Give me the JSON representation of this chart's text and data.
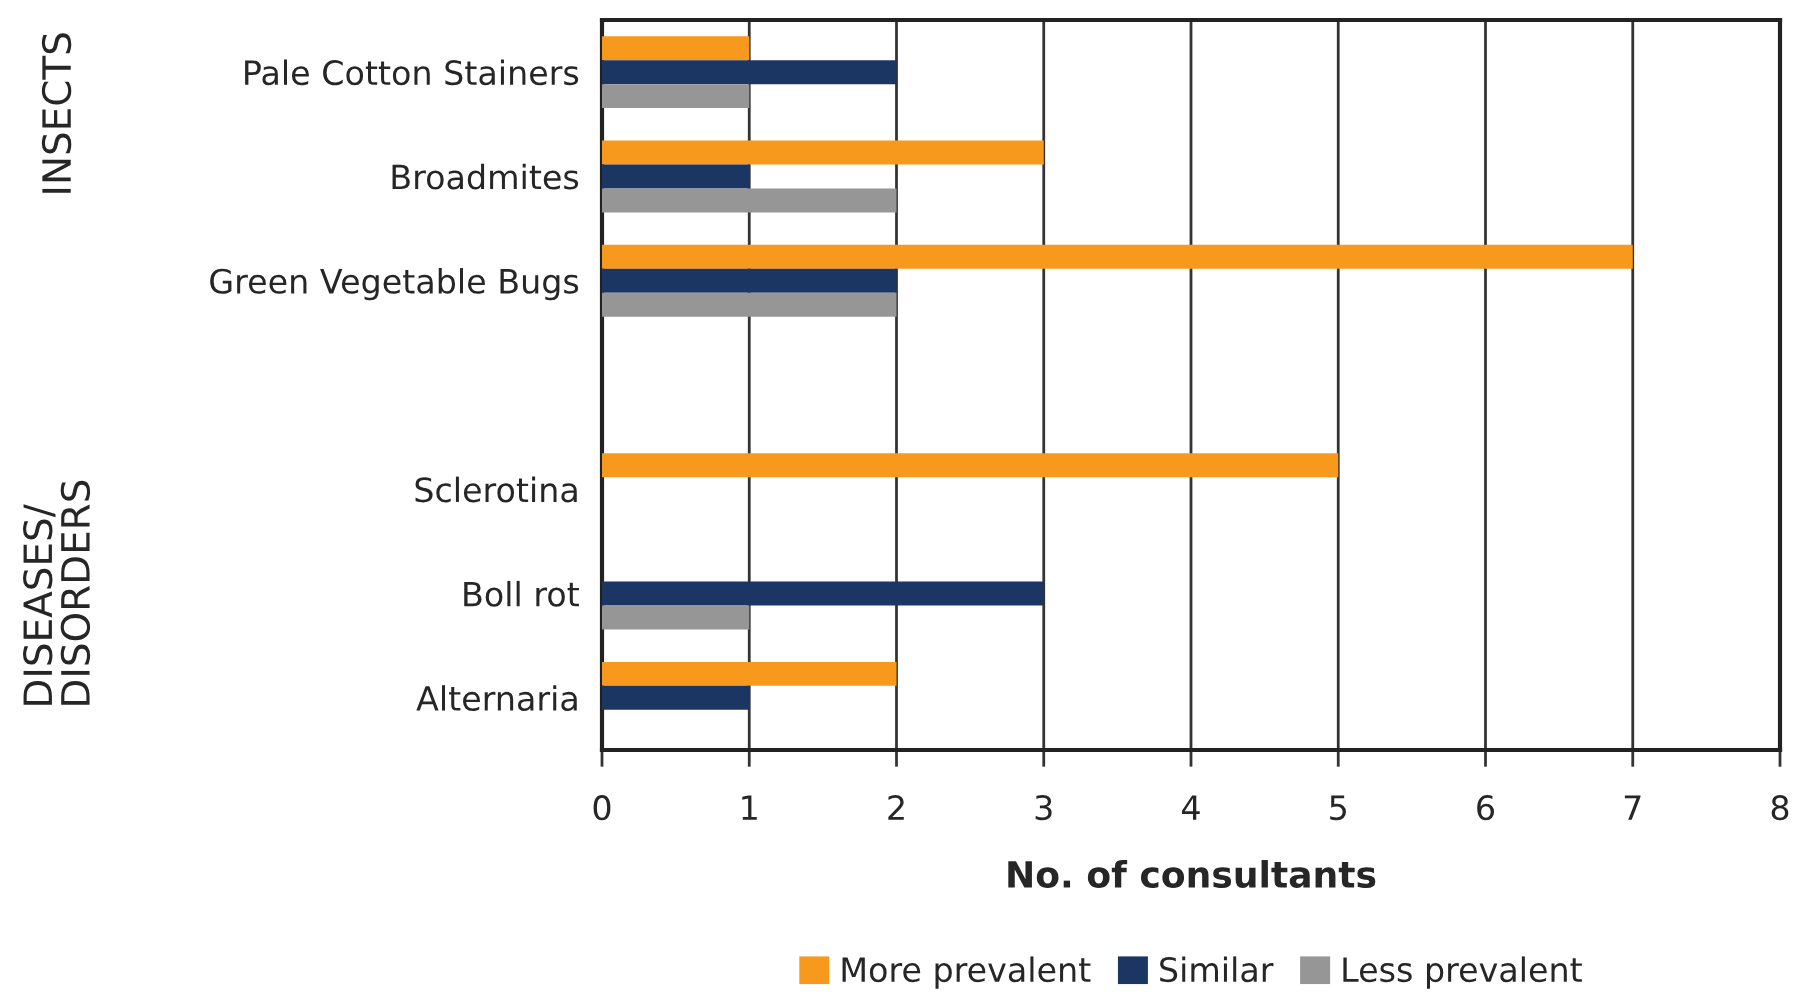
{
  "chart_data": {
    "type": "bar",
    "orientation": "horizontal",
    "categories": [
      "Pale Cotton Stainers",
      "Broadmites",
      "Green Vegetable Bugs",
      null,
      "Sclerotina",
      "Boll rot",
      "Alternaria"
    ],
    "series": [
      {
        "name": "More prevalent",
        "color": "#f7991c",
        "values": [
          1,
          3,
          7,
          null,
          5,
          null,
          2
        ]
      },
      {
        "name": "Similar",
        "color": "#1c3664",
        "values": [
          2,
          1,
          2,
          null,
          null,
          3,
          1
        ]
      },
      {
        "name": "Less prevalent",
        "color": "#969696",
        "values": [
          1,
          2,
          2,
          null,
          null,
          1,
          null
        ]
      }
    ],
    "xlabel": "No. of consultants",
    "xlim": [
      0,
      8
    ],
    "xticks": [
      0,
      1,
      2,
      3,
      4,
      5,
      6,
      7,
      8
    ],
    "grid": "x",
    "legend": "bottom",
    "annotations": [
      "INSECTS",
      "DISEASES/\nDISORDERS"
    ]
  }
}
